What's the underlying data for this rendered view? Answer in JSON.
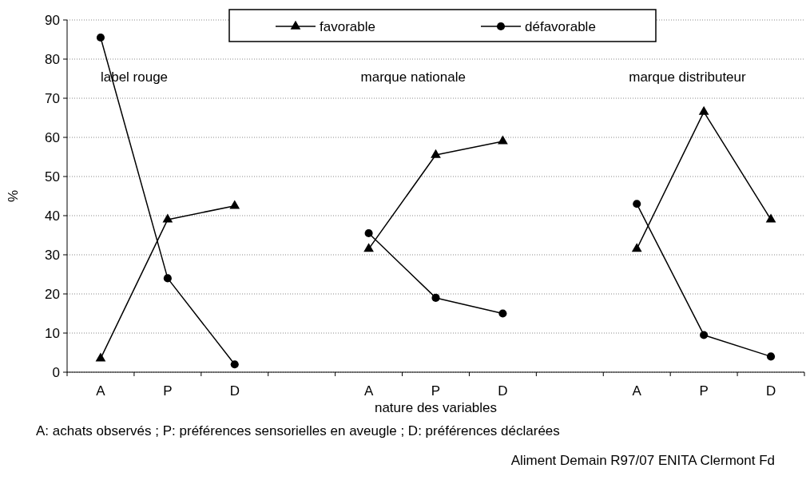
{
  "chart_data": {
    "type": "line",
    "xlabel": "nature des variables",
    "ylabel": "%",
    "categories": [
      "A",
      "P",
      "D",
      null,
      "A",
      "P",
      "D",
      null,
      "A",
      "P",
      "D"
    ],
    "series": [
      {
        "name": "favorable",
        "color": "#000000",
        "marker": "triangle",
        "values": [
          3.5,
          39,
          42.5,
          null,
          31.5,
          55.5,
          59,
          null,
          31.5,
          66.5,
          39
        ]
      },
      {
        "name": "défavorable",
        "color": "#000000",
        "marker": "circle",
        "values": [
          85.5,
          24,
          2,
          null,
          35.5,
          19,
          15,
          null,
          43,
          9.5,
          4
        ]
      }
    ],
    "ylim": [
      0,
      90
    ],
    "yticks": [
      0,
      10,
      20,
      30,
      40,
      50,
      60,
      70,
      80,
      90
    ],
    "grid": "y",
    "legend": "top",
    "line_style": "solid",
    "annotations": [
      "label rouge",
      "marque nationale",
      "marque distributeur",
      "A: achats observés ; P: préférences sensorielles en aveugle ; D: préférences déclarées",
      "Aliment Demain R97/07 ENITA Clermont Fd"
    ]
  }
}
